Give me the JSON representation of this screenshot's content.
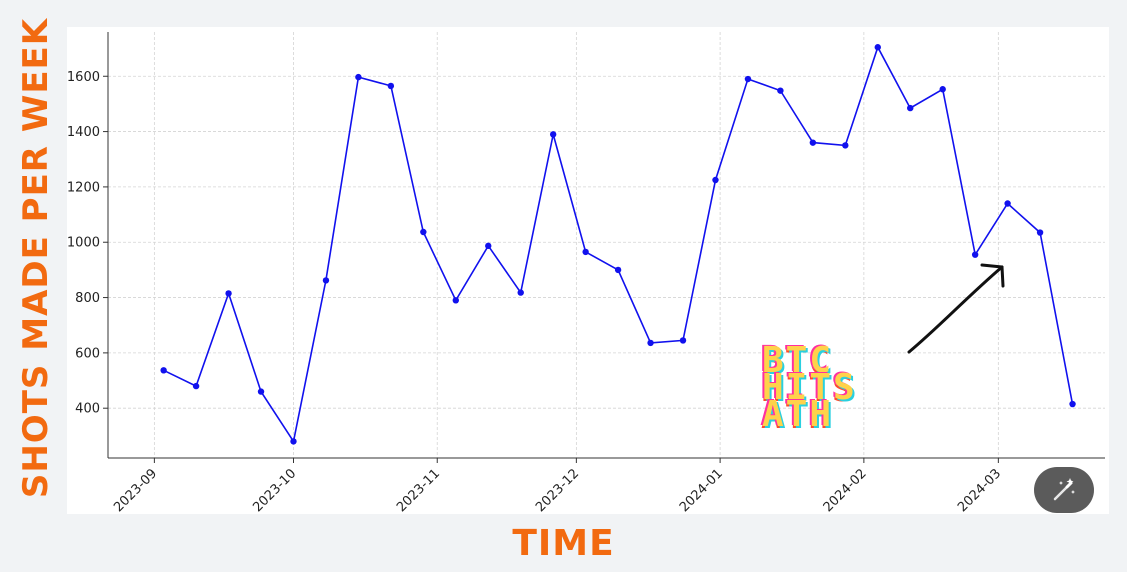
{
  "labels": {
    "y_axis": "SHOTS MADE PER WEEK",
    "x_axis": "TIME"
  },
  "annotation": {
    "lines": [
      "BTC",
      "HITS",
      "ATH"
    ]
  },
  "colors": {
    "accent": "#f26a10",
    "line": "#1111ee",
    "annotation_fill": "#ffd24a"
  },
  "icons": {
    "magic_button": "magic-wand-icon"
  },
  "chart_data": {
    "type": "line",
    "title": "",
    "xlabel": "TIME",
    "ylabel": "SHOTS MADE PER WEEK",
    "grid": true,
    "ylim": [
      220,
      1760
    ],
    "xlim": [
      "2023-08-22",
      "2024-03-24"
    ],
    "x_ticks": [
      "2023-09",
      "2023-10",
      "2023-11",
      "2023-12",
      "2024-01",
      "2024-02",
      "2024-03"
    ],
    "y_ticks": [
      400,
      600,
      800,
      1000,
      1200,
      1400,
      1600
    ],
    "series": [
      {
        "x": [
          "2023-09-03",
          "2023-09-10",
          "2023-09-17",
          "2023-09-24",
          "2023-10-01",
          "2023-10-08",
          "2023-10-15",
          "2023-10-22",
          "2023-10-29",
          "2023-11-05",
          "2023-11-12",
          "2023-11-19",
          "2023-11-26",
          "2023-12-03",
          "2023-12-10",
          "2023-12-17",
          "2023-12-24",
          "2023-12-31",
          "2024-01-07",
          "2024-01-14",
          "2024-01-21",
          "2024-01-28",
          "2024-02-04",
          "2024-02-11",
          "2024-02-18",
          "2024-02-25",
          "2024-03-03",
          "2024-03-10",
          "2024-03-17"
        ],
        "values": [
          537,
          480,
          815,
          460,
          280,
          862,
          1597,
          1565,
          1037,
          790,
          987,
          818,
          1390,
          965,
          900,
          636,
          645,
          1225,
          1590,
          1548,
          1360,
          1350,
          1705,
          1485,
          1553,
          955,
          1140,
          1035,
          415
        ]
      }
    ]
  }
}
